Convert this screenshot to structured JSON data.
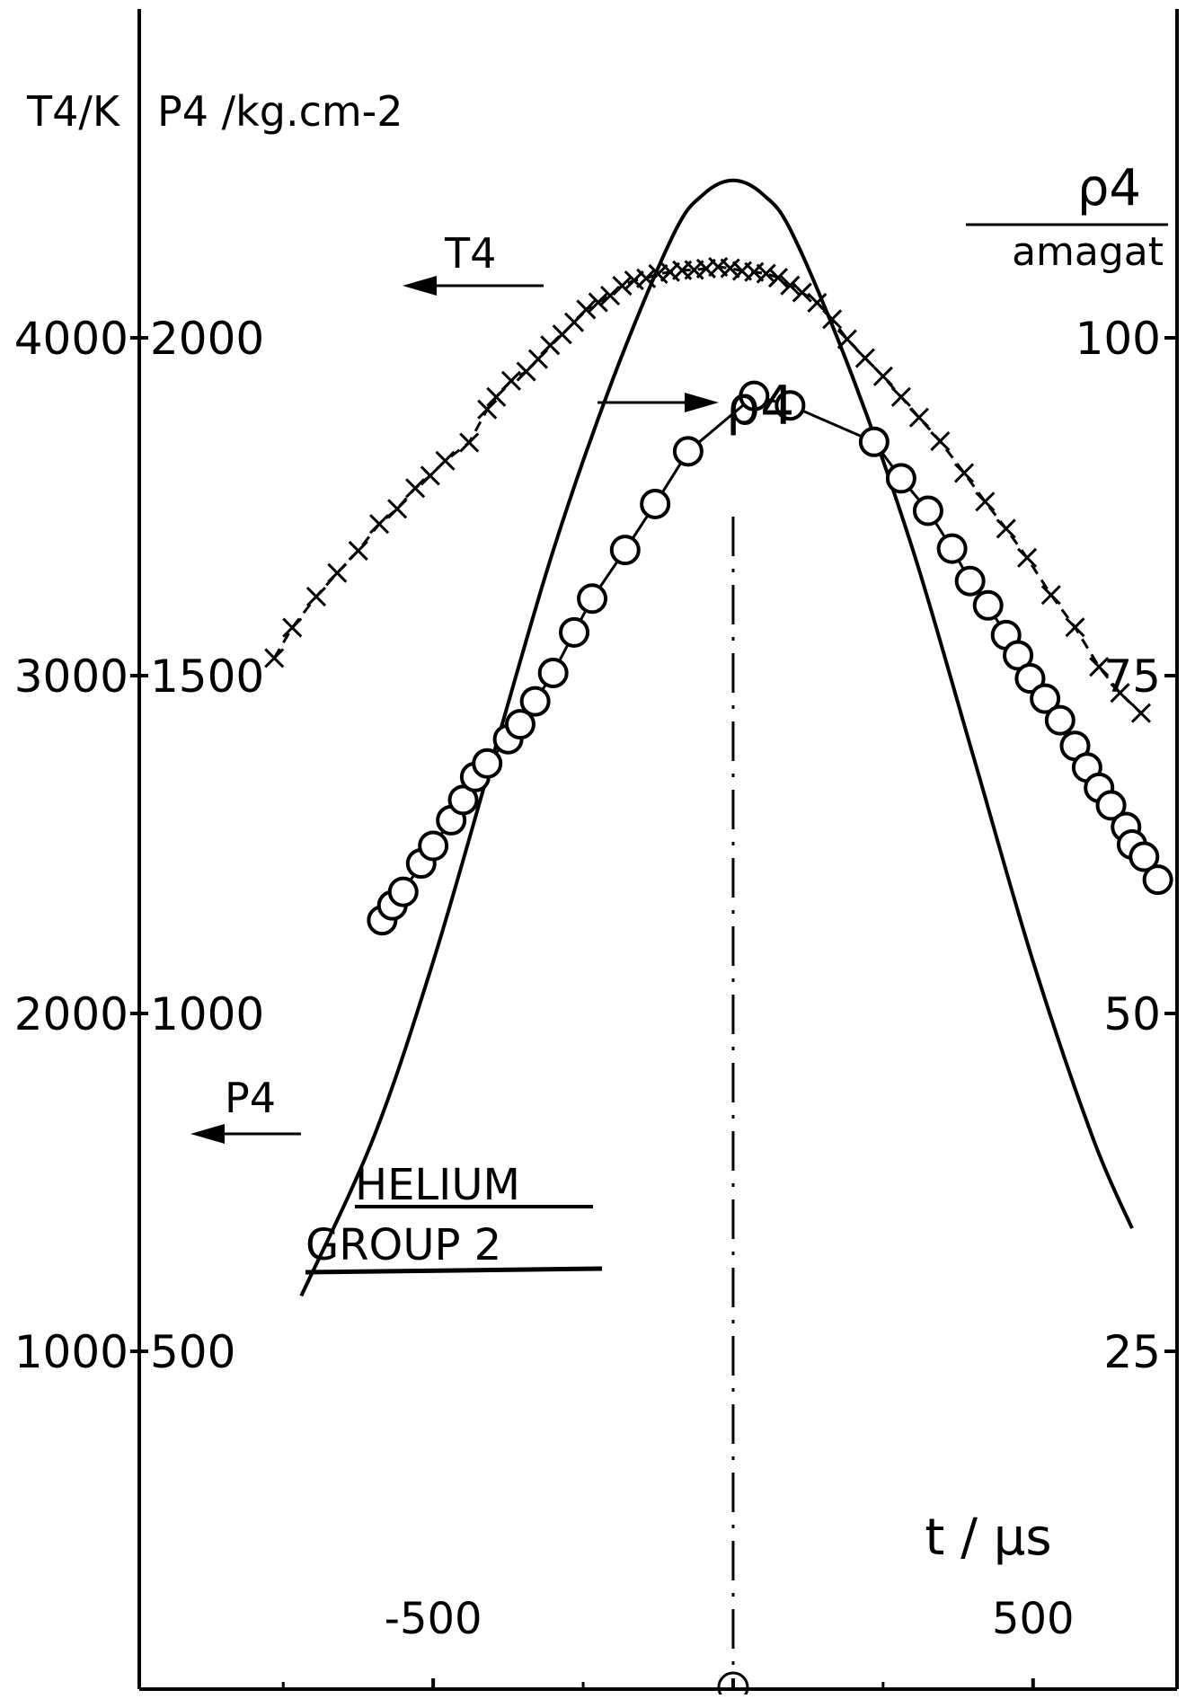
{
  "chart_data": {
    "type": "line",
    "title": "HELIUM",
    "subtitle": "GROUP 2",
    "xlabel": "t / μs",
    "xlim": [
      -990,
      740
    ],
    "x_ticks": [
      -500,
      0,
      500
    ],
    "x_tick_labels": [
      "-500",
      "500"
    ],
    "left_axis": {
      "label_T": "T4/K",
      "label_P": "P4 /kg.cm-2",
      "T_ticks": [
        1000,
        2000,
        3000,
        4000
      ],
      "P_ticks": [
        500,
        1000,
        1500,
        2000
      ],
      "T_tick_labels": [
        "1000",
        "2000",
        "3000",
        "4000"
      ],
      "P_tick_labels": [
        "500",
        "1000",
        "1500",
        "2000"
      ],
      "T_lim": [
        0,
        5000
      ],
      "P_lim": [
        0,
        2500
      ]
    },
    "right_axis": {
      "label_num": "ρ4",
      "label_den": "amagat",
      "ticks": [
        25,
        50,
        75,
        100
      ],
      "tick_labels": [
        "25",
        "50",
        "75",
        "100"
      ],
      "lim": [
        0,
        125
      ]
    },
    "series": [
      {
        "name": "T4",
        "axis": "T",
        "marker": "x",
        "line": "dashed",
        "x": [
          -765,
          -735,
          -695,
          -660,
          -625,
          -590,
          -560,
          -530,
          -505,
          -480,
          -440,
          -410,
          -395,
          -370,
          -345,
          -325,
          -305,
          -285,
          -265,
          -245,
          -225,
          -205,
          -185,
          -165,
          -145,
          -125,
          -105,
          -85,
          -65,
          -45,
          -25,
          -5,
          15,
          35,
          55,
          75,
          95,
          115,
          140,
          165,
          190,
          220,
          250,
          280,
          310,
          345,
          385,
          420,
          455,
          490,
          530,
          570,
          610,
          645,
          680
        ],
        "y": [
          3052,
          3142,
          3234,
          3304,
          3370,
          3449,
          3494,
          3555,
          3592,
          3636,
          3690,
          3788,
          3825,
          3873,
          3900,
          3937,
          3978,
          4010,
          4046,
          4084,
          4105,
          4125,
          4154,
          4170,
          4176,
          4189,
          4195,
          4200,
          4201,
          4205,
          4210,
          4206,
          4198,
          4195,
          4190,
          4178,
          4155,
          4134,
          4104,
          4055,
          3996,
          3940,
          3886,
          3825,
          3764,
          3694,
          3600,
          3515,
          3435,
          3349,
          3239,
          3143,
          3026,
          2949,
          2889
        ]
      },
      {
        "name": "ρ4",
        "axis": "right",
        "marker": "o",
        "line": "solid",
        "x": [
          -585,
          -568,
          -550,
          -520,
          -500,
          -470,
          -450,
          -430,
          -410,
          -375,
          -355,
          -330,
          -300,
          -265,
          -235,
          -180,
          -130,
          -75,
          35,
          95,
          235,
          280,
          325,
          365,
          395,
          425,
          455,
          475,
          495,
          520,
          545,
          570,
          590,
          610,
          630,
          655,
          665,
          685,
          708
        ],
        "y": [
          56.9,
          58.0,
          59.0,
          61.1,
          62.4,
          64.3,
          65.8,
          67.5,
          68.5,
          70.3,
          71.4,
          73.1,
          75.2,
          78.2,
          80.7,
          84.3,
          87.7,
          91.6,
          95.7,
          95.0,
          92.3,
          89.6,
          87.2,
          84.4,
          82.0,
          80.2,
          78.0,
          76.5,
          74.8,
          73.3,
          71.7,
          69.8,
          68.2,
          66.7,
          65.4,
          63.8,
          62.5,
          61.6,
          59.9
        ]
      },
      {
        "name": "P4",
        "axis": "P",
        "marker": "none",
        "line": "solid",
        "x": [
          -720,
          -600,
          -500,
          -400,
          -300,
          -200,
          -100,
          -50,
          0,
          50,
          100,
          200,
          300,
          400,
          500,
          600,
          665
        ],
        "y": [
          582,
          815,
          1077,
          1382,
          1685,
          1940,
          2152,
          2212,
          2233,
          2212,
          2152,
          1940,
          1685,
          1382,
          1077,
          815,
          682
        ]
      }
    ],
    "annotations": {
      "t_label": "T4",
      "rho_label": "ρ4",
      "p_label": "P4"
    },
    "reference_line": {
      "x": 0,
      "style": "dash-dot"
    }
  }
}
